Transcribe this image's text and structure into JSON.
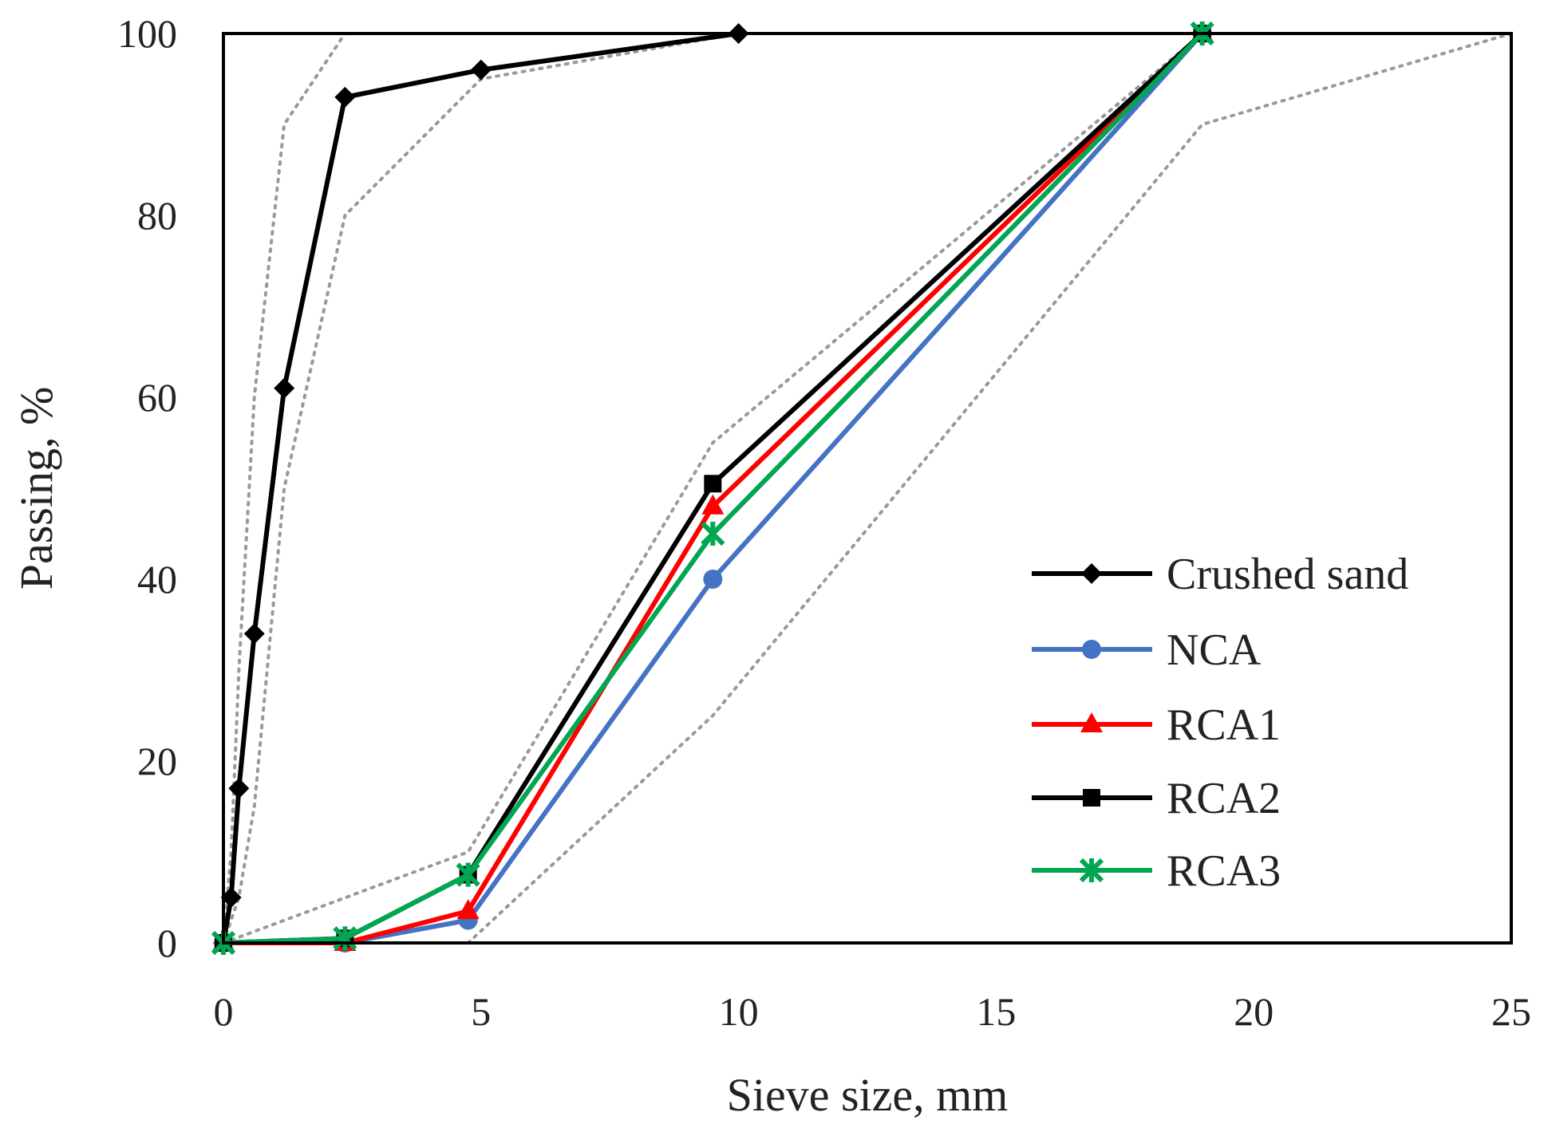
{
  "chart_data": {
    "type": "line",
    "title": "",
    "xlabel": "Sieve size, mm",
    "ylabel": "Passing, %",
    "xlim": [
      0,
      25
    ],
    "ylim": [
      0,
      100
    ],
    "xticks": [
      "0",
      "5",
      "10",
      "15",
      "20",
      "25"
    ],
    "yticks": [
      "0",
      "20",
      "40",
      "60",
      "80",
      "100"
    ],
    "grid": false,
    "legend_position": "bottom-right",
    "series": [
      {
        "name": "Crushed sand",
        "color": "#000000",
        "marker": "diamond",
        "x": [
          0,
          0.15,
          0.3,
          0.6,
          1.18,
          2.36,
          5,
          10
        ],
        "y": [
          0,
          5,
          17,
          34,
          61,
          93,
          96,
          100
        ]
      },
      {
        "name": "NCA",
        "color": "#4472C4",
        "marker": "circle",
        "x": [
          0,
          2.36,
          4.75,
          9.5,
          19
        ],
        "y": [
          0,
          0,
          2.5,
          40,
          100
        ]
      },
      {
        "name": "RCA1",
        "color": "#FF0000",
        "marker": "triangle",
        "x": [
          0,
          2.36,
          4.75,
          9.5,
          19
        ],
        "y": [
          0,
          0,
          3.5,
          48,
          100
        ]
      },
      {
        "name": "RCA2",
        "color": "#000000",
        "marker": "square",
        "x": [
          0,
          2.36,
          4.75,
          9.5,
          19
        ],
        "y": [
          0,
          0.5,
          7.5,
          50.5,
          100
        ]
      },
      {
        "name": "RCA3",
        "color": "#00A651",
        "marker": "star",
        "x": [
          0,
          2.36,
          4.75,
          9.5,
          19
        ],
        "y": [
          0,
          0.5,
          7.5,
          45,
          100
        ]
      }
    ],
    "limits": [
      {
        "name": "sand-upper-limit",
        "x": [
          0,
          0.15,
          0.3,
          0.6,
          1.18,
          2.36,
          5,
          25
        ],
        "y": [
          0,
          10,
          30,
          60,
          90,
          100,
          100,
          100
        ]
      },
      {
        "name": "sand-lower-limit",
        "x": [
          0,
          0.3,
          0.6,
          1.18,
          2.36,
          5,
          10
        ],
        "y": [
          0,
          5,
          15,
          50,
          80,
          95,
          100
        ]
      },
      {
        "name": "coarse-upper-limit",
        "x": [
          0,
          4.75,
          9.5,
          19
        ],
        "y": [
          0,
          10,
          55,
          100
        ]
      },
      {
        "name": "coarse-lower-limit",
        "x": [
          2.36,
          4.75,
          9.5,
          19,
          25
        ],
        "y": [
          0,
          0,
          25,
          90,
          100
        ]
      }
    ]
  }
}
